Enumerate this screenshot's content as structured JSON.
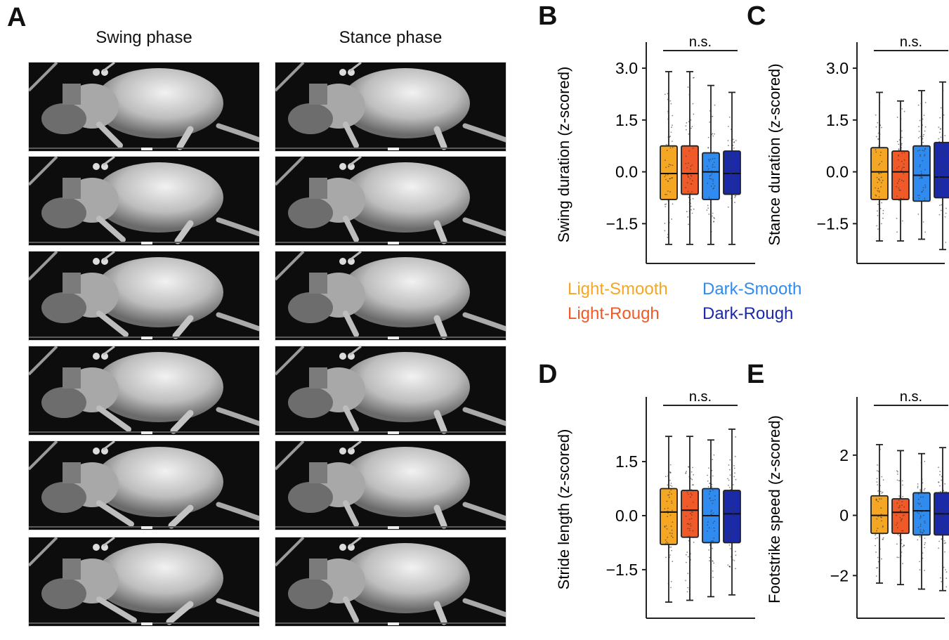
{
  "panels": {
    "A": {
      "letter": "A",
      "columns": [
        "Swing phase",
        "Stance phase"
      ]
    },
    "B": "B",
    "C": "C",
    "D": "D",
    "E": "E"
  },
  "legend": [
    {
      "label": "Light-Smooth",
      "color": "#f5a623"
    },
    {
      "label": "Light-Rough",
      "color": "#f05a28"
    },
    {
      "label": "Dark-Smooth",
      "color": "#2f8bf0"
    },
    {
      "label": "Dark-Rough",
      "color": "#1a2aa8"
    }
  ],
  "chart_data": [
    {
      "panel": "B",
      "type": "box",
      "ylabel": "Swing duration (z-scored)",
      "yticks": [
        3.0,
        1.5,
        0.0,
        -1.5
      ],
      "ytick_labels": [
        "3.0",
        "1.5",
        "0.0",
        "−1.5"
      ],
      "ylim": [
        -2.55,
        3.55
      ],
      "annotation": "n.s.",
      "categories": [
        "Light-Smooth",
        "Light-Rough",
        "Dark-Smooth",
        "Dark-Rough"
      ],
      "boxes": [
        {
          "whisker_low": -2.1,
          "q1": -0.8,
          "median": -0.05,
          "q3": 0.75,
          "whisker_high": 2.9
        },
        {
          "whisker_low": -2.1,
          "q1": -0.65,
          "median": -0.05,
          "q3": 0.75,
          "whisker_high": 2.9
        },
        {
          "whisker_low": -2.1,
          "q1": -0.8,
          "median": 0.0,
          "q3": 0.55,
          "whisker_high": 2.5
        },
        {
          "whisker_low": -2.1,
          "q1": -0.65,
          "median": -0.05,
          "q3": 0.6,
          "whisker_high": 2.3
        }
      ]
    },
    {
      "panel": "C",
      "type": "box",
      "ylabel": "Stance duration (z-scored)",
      "yticks": [
        3.0,
        1.5,
        0.0,
        -1.5
      ],
      "ytick_labels": [
        "3.0",
        "1.5",
        "0.0",
        "−1.5"
      ],
      "ylim": [
        -2.55,
        3.55
      ],
      "annotation": "n.s.",
      "categories": [
        "Light-Smooth",
        "Light-Rough",
        "Dark-Smooth",
        "Dark-Rough"
      ],
      "boxes": [
        {
          "whisker_low": -2.0,
          "q1": -0.8,
          "median": 0.0,
          "q3": 0.7,
          "whisker_high": 2.3
        },
        {
          "whisker_low": -2.0,
          "q1": -0.8,
          "median": 0.0,
          "q3": 0.6,
          "whisker_high": 2.05
        },
        {
          "whisker_low": -1.95,
          "q1": -0.85,
          "median": -0.1,
          "q3": 0.75,
          "whisker_high": 2.35
        },
        {
          "whisker_low": -2.25,
          "q1": -0.75,
          "median": -0.15,
          "q3": 0.85,
          "whisker_high": 2.6
        }
      ]
    },
    {
      "panel": "D",
      "type": "box",
      "ylabel": "Stride length (z-scored)",
      "yticks": [
        1.5,
        0.0,
        -1.5
      ],
      "ytick_labels": [
        "1.5",
        "0.0",
        "−1.5"
      ],
      "ylim": [
        -2.75,
        3.1
      ],
      "annotation": "n.s.",
      "categories": [
        "Light-Smooth",
        "Light-Rough",
        "Dark-Smooth",
        "Dark-Rough"
      ],
      "boxes": [
        {
          "whisker_low": -2.4,
          "q1": -0.8,
          "median": 0.1,
          "q3": 0.75,
          "whisker_high": 2.2
        },
        {
          "whisker_low": -2.35,
          "q1": -0.6,
          "median": 0.15,
          "q3": 0.7,
          "whisker_high": 2.2
        },
        {
          "whisker_low": -2.25,
          "q1": -0.75,
          "median": 0.0,
          "q3": 0.75,
          "whisker_high": 2.1
        },
        {
          "whisker_low": -2.2,
          "q1": -0.75,
          "median": 0.05,
          "q3": 0.7,
          "whisker_high": 2.4
        }
      ]
    },
    {
      "panel": "E",
      "type": "box",
      "ylabel": "Footstrike speed (z-scored)",
      "yticks": [
        2,
        0,
        -2
      ],
      "ytick_labels": [
        "2",
        "0",
        "−2"
      ],
      "ylim": [
        -3.3,
        3.7
      ],
      "annotation": "n.s.",
      "categories": [
        "Light-Smooth",
        "Light-Rough",
        "Dark-Smooth",
        "Dark-Rough"
      ],
      "boxes": [
        {
          "whisker_low": -2.25,
          "q1": -0.6,
          "median": 0.0,
          "q3": 0.65,
          "whisker_high": 2.35
        },
        {
          "whisker_low": -2.3,
          "q1": -0.6,
          "median": 0.1,
          "q3": 0.55,
          "whisker_high": 2.15
        },
        {
          "whisker_low": -2.45,
          "q1": -0.65,
          "median": 0.15,
          "q3": 0.75,
          "whisker_high": 2.05
        },
        {
          "whisker_low": -2.5,
          "q1": -0.65,
          "median": 0.05,
          "q3": 0.75,
          "whisker_high": 2.25
        }
      ]
    }
  ]
}
